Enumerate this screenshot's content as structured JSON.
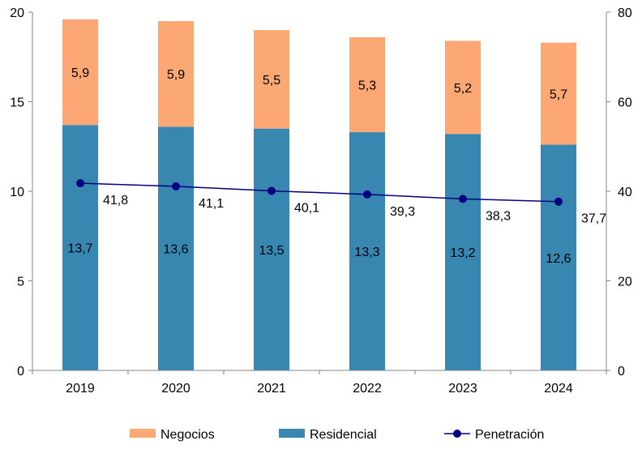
{
  "chart_data": {
    "type": "bar",
    "stacked": true,
    "categories": [
      "2019",
      "2020",
      "2021",
      "2022",
      "2023",
      "2024"
    ],
    "series": [
      {
        "name": "Residencial",
        "axis": "left",
        "kind": "bar",
        "color": "#3787B1",
        "values": [
          13.7,
          13.6,
          13.5,
          13.3,
          13.2,
          12.6
        ],
        "labels": [
          "13,7",
          "13,6",
          "13,5",
          "13,3",
          "13,2",
          "12,6"
        ]
      },
      {
        "name": "Negocios",
        "axis": "left",
        "kind": "bar",
        "color": "#FCA874",
        "values": [
          5.9,
          5.9,
          5.5,
          5.3,
          5.2,
          5.7
        ],
        "labels": [
          "5,9",
          "5,9",
          "5,5",
          "5,3",
          "5,2",
          "5,7"
        ]
      },
      {
        "name": "Penetración",
        "axis": "right",
        "kind": "line",
        "color": "#000080",
        "values": [
          41.8,
          41.1,
          40.1,
          39.3,
          38.3,
          37.7
        ],
        "labels": [
          "41,8",
          "41,1",
          "40,1",
          "39,3",
          "38,3",
          "37,7"
        ]
      }
    ],
    "y_left": {
      "min": 0,
      "max": 20,
      "ticks": [
        "0",
        "5",
        "10",
        "15",
        "20"
      ]
    },
    "y_right": {
      "min": 0,
      "max": 80,
      "ticks": [
        "0",
        "20",
        "40",
        "60",
        "80"
      ]
    },
    "legend": {
      "position": "bottom",
      "items": [
        "Negocios",
        "Residencial",
        "Penetración"
      ]
    },
    "title": "",
    "xlabel": "",
    "ylabel": ""
  }
}
